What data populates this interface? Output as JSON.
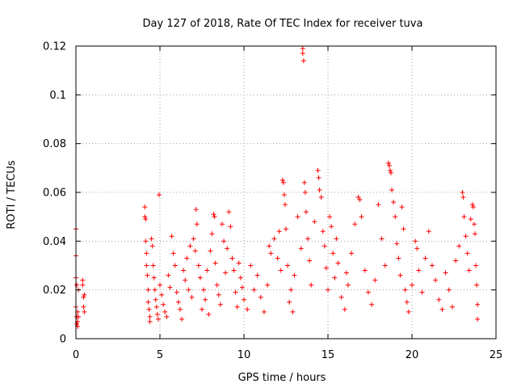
{
  "chart_data": {
    "type": "scatter",
    "title": "Day 127 of 2018, Rate Of TEC Index for receiver tuva",
    "xlabel": "GPS time / hours",
    "ylabel": "ROTI / TECUs",
    "xlim": [
      0,
      25
    ],
    "ylim": [
      0,
      0.12
    ],
    "xticks": [
      0,
      5,
      10,
      15,
      20,
      25
    ],
    "yticks": [
      0,
      0.02,
      0.04,
      0.06,
      0.08,
      0.1,
      0.12
    ],
    "xtick_labels": [
      "0",
      "5",
      "10",
      "15",
      "20",
      "25"
    ],
    "ytick_labels": [
      "0",
      "0.02",
      "0.04",
      "0.06",
      "0.08",
      "0.1",
      "0.12"
    ],
    "grid": true,
    "marker": "+",
    "color": "#ff0000",
    "series": [
      {
        "name": "ROTI",
        "points": [
          [
            0.0,
            0.045
          ],
          [
            0.0,
            0.034
          ],
          [
            0.0,
            0.025
          ],
          [
            0.05,
            0.022
          ],
          [
            0.05,
            0.009
          ],
          [
            0.05,
            0.006
          ],
          [
            0.1,
            0.011
          ],
          [
            0.1,
            0.007
          ],
          [
            0.15,
            0.02
          ],
          [
            0.15,
            0.009
          ],
          [
            0.0,
            0.013
          ],
          [
            0.1,
            0.005
          ],
          [
            0.4,
            0.024
          ],
          [
            0.4,
            0.022
          ],
          [
            0.45,
            0.017
          ],
          [
            0.45,
            0.013
          ],
          [
            0.5,
            0.011
          ],
          [
            0.5,
            0.018
          ],
          [
            4.1,
            0.054
          ],
          [
            4.1,
            0.05
          ],
          [
            4.15,
            0.049
          ],
          [
            4.15,
            0.04
          ],
          [
            4.2,
            0.035
          ],
          [
            4.2,
            0.03
          ],
          [
            4.25,
            0.026
          ],
          [
            4.3,
            0.02
          ],
          [
            4.3,
            0.015
          ],
          [
            4.35,
            0.012
          ],
          [
            4.4,
            0.009
          ],
          [
            4.4,
            0.007
          ],
          [
            4.5,
            0.041
          ],
          [
            4.55,
            0.038
          ],
          [
            4.6,
            0.03
          ],
          [
            4.65,
            0.025
          ],
          [
            4.7,
            0.02
          ],
          [
            4.75,
            0.016
          ],
          [
            4.8,
            0.013
          ],
          [
            4.85,
            0.01
          ],
          [
            4.9,
            0.008
          ],
          [
            4.95,
            0.059
          ],
          [
            5.0,
            0.022
          ],
          [
            5.1,
            0.018
          ],
          [
            5.2,
            0.014
          ],
          [
            5.3,
            0.011
          ],
          [
            5.4,
            0.009
          ],
          [
            5.5,
            0.026
          ],
          [
            5.6,
            0.021
          ],
          [
            5.7,
            0.042
          ],
          [
            5.8,
            0.035
          ],
          [
            5.9,
            0.03
          ],
          [
            6.0,
            0.019
          ],
          [
            6.1,
            0.015
          ],
          [
            6.2,
            0.012
          ],
          [
            6.3,
            0.008
          ],
          [
            6.4,
            0.028
          ],
          [
            6.5,
            0.024
          ],
          [
            6.6,
            0.033
          ],
          [
            6.7,
            0.02
          ],
          [
            6.8,
            0.038
          ],
          [
            6.9,
            0.017
          ],
          [
            7.0,
            0.041
          ],
          [
            7.1,
            0.036
          ],
          [
            7.15,
            0.053
          ],
          [
            7.2,
            0.047
          ],
          [
            7.3,
            0.03
          ],
          [
            7.4,
            0.025
          ],
          [
            7.5,
            0.012
          ],
          [
            7.6,
            0.02
          ],
          [
            7.7,
            0.016
          ],
          [
            7.8,
            0.028
          ],
          [
            7.9,
            0.01
          ],
          [
            8.0,
            0.036
          ],
          [
            8.1,
            0.043
          ],
          [
            8.2,
            0.051
          ],
          [
            8.25,
            0.05
          ],
          [
            8.3,
            0.031
          ],
          [
            8.4,
            0.022
          ],
          [
            8.5,
            0.018
          ],
          [
            8.6,
            0.014
          ],
          [
            8.7,
            0.047
          ],
          [
            8.8,
            0.04
          ],
          [
            8.9,
            0.027
          ],
          [
            9.0,
            0.037
          ],
          [
            9.1,
            0.052
          ],
          [
            9.2,
            0.046
          ],
          [
            9.3,
            0.033
          ],
          [
            9.4,
            0.028
          ],
          [
            9.5,
            0.019
          ],
          [
            9.6,
            0.013
          ],
          [
            9.7,
            0.031
          ],
          [
            9.8,
            0.025
          ],
          [
            9.9,
            0.021
          ],
          [
            10.0,
            0.016
          ],
          [
            10.2,
            0.012
          ],
          [
            10.4,
            0.03
          ],
          [
            10.6,
            0.02
          ],
          [
            10.8,
            0.026
          ],
          [
            11.0,
            0.017
          ],
          [
            11.2,
            0.011
          ],
          [
            11.4,
            0.022
          ],
          [
            11.5,
            0.038
          ],
          [
            11.6,
            0.035
          ],
          [
            11.8,
            0.041
          ],
          [
            12.0,
            0.033
          ],
          [
            12.1,
            0.044
          ],
          [
            12.2,
            0.028
          ],
          [
            12.3,
            0.065
          ],
          [
            12.35,
            0.064
          ],
          [
            12.4,
            0.059
          ],
          [
            12.45,
            0.055
          ],
          [
            12.5,
            0.045
          ],
          [
            12.6,
            0.03
          ],
          [
            12.7,
            0.015
          ],
          [
            12.8,
            0.02
          ],
          [
            12.9,
            0.011
          ],
          [
            13.0,
            0.026
          ],
          [
            13.2,
            0.05
          ],
          [
            13.4,
            0.037
          ],
          [
            13.5,
            0.119
          ],
          [
            13.5,
            0.117
          ],
          [
            13.55,
            0.114
          ],
          [
            13.6,
            0.064
          ],
          [
            13.65,
            0.06
          ],
          [
            13.7,
            0.052
          ],
          [
            13.8,
            0.041
          ],
          [
            13.9,
            0.032
          ],
          [
            14.0,
            0.022
          ],
          [
            14.2,
            0.048
          ],
          [
            14.4,
            0.069
          ],
          [
            14.45,
            0.066
          ],
          [
            14.5,
            0.061
          ],
          [
            14.6,
            0.058
          ],
          [
            14.7,
            0.044
          ],
          [
            14.8,
            0.038
          ],
          [
            14.9,
            0.029
          ],
          [
            15.0,
            0.02
          ],
          [
            15.1,
            0.05
          ],
          [
            15.2,
            0.046
          ],
          [
            15.3,
            0.035
          ],
          [
            15.4,
            0.025
          ],
          [
            15.5,
            0.041
          ],
          [
            15.6,
            0.031
          ],
          [
            15.8,
            0.017
          ],
          [
            16.0,
            0.012
          ],
          [
            16.1,
            0.027
          ],
          [
            16.2,
            0.022
          ],
          [
            16.4,
            0.035
          ],
          [
            16.6,
            0.047
          ],
          [
            16.8,
            0.058
          ],
          [
            16.9,
            0.057
          ],
          [
            17.0,
            0.05
          ],
          [
            17.2,
            0.028
          ],
          [
            17.4,
            0.019
          ],
          [
            17.6,
            0.014
          ],
          [
            17.8,
            0.024
          ],
          [
            18.0,
            0.055
          ],
          [
            18.2,
            0.041
          ],
          [
            18.4,
            0.03
          ],
          [
            18.6,
            0.072
          ],
          [
            18.65,
            0.071
          ],
          [
            18.7,
            0.069
          ],
          [
            18.75,
            0.068
          ],
          [
            18.8,
            0.061
          ],
          [
            18.9,
            0.056
          ],
          [
            19.0,
            0.05
          ],
          [
            19.1,
            0.039
          ],
          [
            19.2,
            0.033
          ],
          [
            19.3,
            0.026
          ],
          [
            19.4,
            0.054
          ],
          [
            19.5,
            0.045
          ],
          [
            19.6,
            0.02
          ],
          [
            19.7,
            0.015
          ],
          [
            19.8,
            0.011
          ],
          [
            20.0,
            0.022
          ],
          [
            20.2,
            0.04
          ],
          [
            20.3,
            0.037
          ],
          [
            20.4,
            0.028
          ],
          [
            20.6,
            0.019
          ],
          [
            20.8,
            0.033
          ],
          [
            21.0,
            0.044
          ],
          [
            21.2,
            0.03
          ],
          [
            21.4,
            0.024
          ],
          [
            21.6,
            0.016
          ],
          [
            21.8,
            0.012
          ],
          [
            22.0,
            0.027
          ],
          [
            22.2,
            0.02
          ],
          [
            22.4,
            0.013
          ],
          [
            22.6,
            0.032
          ],
          [
            22.8,
            0.038
          ],
          [
            23.0,
            0.06
          ],
          [
            23.05,
            0.058
          ],
          [
            23.1,
            0.05
          ],
          [
            23.2,
            0.042
          ],
          [
            23.3,
            0.035
          ],
          [
            23.4,
            0.028
          ],
          [
            23.5,
            0.049
          ],
          [
            23.6,
            0.055
          ],
          [
            23.65,
            0.054
          ],
          [
            23.7,
            0.047
          ],
          [
            23.75,
            0.043
          ],
          [
            23.8,
            0.03
          ],
          [
            23.85,
            0.022
          ],
          [
            23.9,
            0.014
          ],
          [
            23.9,
            0.008
          ]
        ]
      }
    ]
  }
}
